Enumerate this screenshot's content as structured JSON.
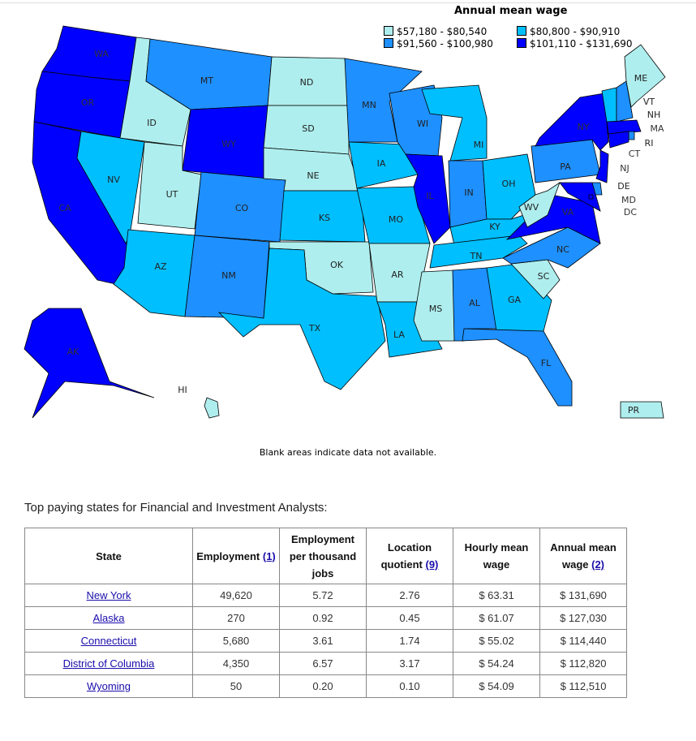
{
  "legend": {
    "title": "Annual mean wage",
    "items": [
      {
        "label": "$57,180 - $80,540",
        "color": "#AFEEEE"
      },
      {
        "label": "$80,800 - $90,910",
        "color": "#00BFFF"
      },
      {
        "label": "$91,560 - $100,980",
        "color": "#1E90FF"
      },
      {
        "label": "$101,110 - $131,690",
        "color": "#0000FF"
      }
    ]
  },
  "states": {
    "WA": 4,
    "OR": 4,
    "CA": 4,
    "NV": 2,
    "ID": 1,
    "MT": 3,
    "WY": 4,
    "UT": 1,
    "AZ": 2,
    "CO": 3,
    "NM": 3,
    "ND": 1,
    "SD": 1,
    "NE": 1,
    "KS": 2,
    "OK": 1,
    "TX": 2,
    "MN": 3,
    "IA": 2,
    "MO": 2,
    "AR": 1,
    "LA": 2,
    "WI": 3,
    "IL": 4,
    "MI": 2,
    "IN": 3,
    "OH": 2,
    "KY": 2,
    "TN": 2,
    "MS": 1,
    "AL": 3,
    "GA": 2,
    "FL": 3,
    "SC": 1,
    "NC": 3,
    "VA": 4,
    "WV": 1,
    "PA": 3,
    "NY": 4,
    "VT": 2,
    "NH": 3,
    "ME": 1,
    "MA": 4,
    "RI": 3,
    "CT": 4,
    "NJ": 4,
    "DE": 3,
    "MD": 4,
    "DC": 4,
    "AK": 4,
    "HI": 1,
    "PR": 1
  },
  "note": "Blank areas indicate data not available.",
  "caption": "Top paying states for Financial and Investment Analysts:",
  "table": {
    "headers": [
      "State",
      "Employment",
      "Employment per thousand jobs",
      "Location quotient",
      "Hourly mean wage",
      "Annual mean wage"
    ],
    "header_links": {
      "1": "(1)",
      "3": "(9)",
      "5": "(2)"
    },
    "rows": [
      [
        "New York",
        "49,620",
        "5.72",
        "2.76",
        "$ 63.31",
        "$ 131,690"
      ],
      [
        "Alaska",
        "270",
        "0.92",
        "0.45",
        "$ 61.07",
        "$ 127,030"
      ],
      [
        "Connecticut",
        "5,680",
        "3.61",
        "1.74",
        "$ 55.02",
        "$ 114,440"
      ],
      [
        "District of Columbia",
        "4,350",
        "6.57",
        "3.17",
        "$ 54.24",
        "$ 112,820"
      ],
      [
        "Wyoming",
        "50",
        "0.20",
        "0.10",
        "$ 54.09",
        "$ 112,510"
      ]
    ]
  }
}
